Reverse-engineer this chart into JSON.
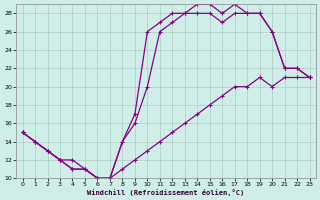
{
  "xlabel": "Windchill (Refroidissement éolien,°C)",
  "background_color": "#d0eee8",
  "grid_color": "#b0ccc4",
  "line_color": "#880088",
  "xlim": [
    -0.5,
    23.5
  ],
  "ylim": [
    10,
    29
  ],
  "xticks": [
    0,
    1,
    2,
    3,
    4,
    5,
    6,
    7,
    8,
    9,
    10,
    11,
    12,
    13,
    14,
    15,
    16,
    17,
    18,
    19,
    20,
    21,
    22,
    23
  ],
  "yticks": [
    10,
    12,
    14,
    16,
    18,
    20,
    22,
    24,
    26,
    28
  ],
  "line1_y": [
    15,
    14,
    13,
    12,
    12,
    11,
    10,
    10,
    14,
    17,
    26,
    27,
    28,
    28,
    29,
    29,
    28,
    29,
    28,
    28,
    26,
    22,
    22,
    21
  ],
  "line2_y": [
    15,
    14,
    13,
    12,
    11,
    11,
    10,
    10,
    14,
    16,
    20,
    26,
    27,
    28,
    28,
    28,
    27,
    28,
    28,
    28,
    26,
    22,
    22,
    21
  ],
  "line3_y": [
    15,
    14,
    13,
    12,
    11,
    11,
    10,
    10,
    11,
    12,
    13,
    14,
    15,
    16,
    17,
    18,
    19,
    20,
    20,
    21,
    20,
    21,
    21,
    21
  ]
}
